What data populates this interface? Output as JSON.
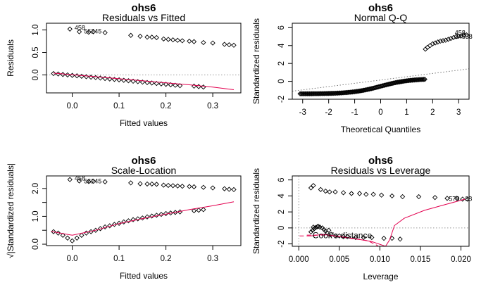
{
  "chart_data": [
    {
      "id": "p1",
      "type": "scatter",
      "title": "ohs6",
      "subtitle": "Residuals vs Fitted",
      "xlabel": "Fitted values",
      "ylabel": "Residuals",
      "xlim": [
        -0.055,
        0.36
      ],
      "ylim": [
        -0.4,
        1.15
      ],
      "xticks": [
        0.0,
        0.1,
        0.2,
        0.3
      ],
      "xtick_labels": [
        "0.0",
        "0.1",
        "0.2",
        "0.3"
      ],
      "yticks": [
        0.0,
        0.5,
        1.0
      ],
      "ytick_labels": [
        "0.0",
        "0.5",
        "1.0"
      ],
      "hline": 0,
      "points": [
        [
          -0.04,
          0.03
        ],
        [
          -0.03,
          0.02
        ],
        [
          -0.02,
          0.01
        ],
        [
          -0.01,
          0.0
        ],
        [
          0.0,
          -0.01
        ],
        [
          0.01,
          -0.02
        ],
        [
          0.02,
          -0.03
        ],
        [
          0.03,
          -0.04
        ],
        [
          0.04,
          -0.05
        ],
        [
          0.05,
          -0.06
        ],
        [
          0.06,
          -0.07
        ],
        [
          0.07,
          -0.08
        ],
        [
          0.08,
          -0.09
        ],
        [
          0.09,
          -0.1
        ],
        [
          0.1,
          -0.11
        ],
        [
          0.11,
          -0.12
        ],
        [
          0.12,
          -0.13
        ],
        [
          0.13,
          -0.14
        ],
        [
          0.14,
          -0.15
        ],
        [
          0.15,
          -0.16
        ],
        [
          0.16,
          -0.17
        ],
        [
          0.17,
          -0.18
        ],
        [
          0.18,
          -0.19
        ],
        [
          0.19,
          -0.2
        ],
        [
          0.2,
          -0.21
        ],
        [
          0.21,
          -0.22
        ],
        [
          0.22,
          -0.23
        ],
        [
          0.23,
          -0.24
        ],
        [
          0.26,
          -0.25
        ],
        [
          0.27,
          -0.26
        ],
        [
          0.28,
          -0.27
        ],
        [
          -0.005,
          1.02
        ],
        [
          0.015,
          0.96
        ],
        [
          0.035,
          0.95
        ],
        [
          0.045,
          0.96
        ],
        [
          0.07,
          0.94
        ],
        [
          0.125,
          0.88
        ],
        [
          0.145,
          0.86
        ],
        [
          0.16,
          0.84
        ],
        [
          0.17,
          0.84
        ],
        [
          0.18,
          0.83
        ],
        [
          0.195,
          0.8
        ],
        [
          0.205,
          0.79
        ],
        [
          0.215,
          0.78
        ],
        [
          0.225,
          0.77
        ],
        [
          0.235,
          0.76
        ],
        [
          0.25,
          0.75
        ],
        [
          0.26,
          0.74
        ],
        [
          0.28,
          0.72
        ],
        [
          0.3,
          0.71
        ],
        [
          0.325,
          0.68
        ],
        [
          0.335,
          0.67
        ],
        [
          0.345,
          0.66
        ]
      ],
      "smooth": [
        [
          -0.04,
          0.04
        ],
        [
          0.05,
          -0.04
        ],
        [
          0.15,
          -0.13
        ],
        [
          0.25,
          -0.22
        ],
        [
          0.3,
          -0.27
        ],
        [
          0.345,
          -0.33
        ]
      ],
      "point_labels": [
        {
          "text": "458",
          "x": 0.005,
          "y": 1.04
        },
        {
          "text": "56245",
          "x": 0.025,
          "y": 0.96
        }
      ]
    },
    {
      "id": "p2",
      "type": "scatter",
      "title": "ohs6",
      "subtitle": "Normal Q-Q",
      "xlabel": "Theoretical Quantiles",
      "ylabel": "Standardized residuals",
      "xlim": [
        -3.4,
        3.4
      ],
      "ylim": [
        -2.0,
        6.5
      ],
      "xticks": [
        -3,
        -2,
        -1,
        0,
        1,
        2,
        3
      ],
      "xtick_labels": [
        "-3",
        "-2",
        "-1",
        "0",
        "1",
        "2",
        "3"
      ],
      "yticks": [
        -2,
        0,
        2,
        4,
        6
      ],
      "ytick_labels": [
        "-2",
        "0",
        "2",
        "4",
        "6"
      ],
      "refline": [
        [
          -3.4,
          -1.1
        ],
        [
          3.4,
          1.4
        ]
      ],
      "qq_body": {
        "x_start": -3.1,
        "x_end": 1.7,
        "count": 120
      },
      "qq_upper": [
        [
          1.72,
          3.6
        ],
        [
          1.8,
          3.8
        ],
        [
          1.9,
          4.0
        ],
        [
          2.0,
          4.2
        ],
        [
          2.1,
          4.3
        ],
        [
          2.2,
          4.4
        ],
        [
          2.3,
          4.5
        ],
        [
          2.4,
          4.55
        ],
        [
          2.5,
          4.6
        ],
        [
          2.6,
          4.7
        ],
        [
          2.7,
          4.8
        ],
        [
          2.8,
          4.9
        ],
        [
          2.9,
          5.0
        ],
        [
          3.0,
          5.05
        ],
        [
          3.1,
          5.1
        ],
        [
          3.2,
          5.15
        ],
        [
          3.3,
          5.2
        ]
      ],
      "point_labels": [
        {
          "text": "458",
          "x": 2.85,
          "y": 5.4
        },
        {
          "text": "24538",
          "x": 2.85,
          "y": 4.95
        }
      ]
    },
    {
      "id": "p3",
      "type": "scatter",
      "title": "ohs6",
      "subtitle": "Scale-Location",
      "xlabel": "Fitted values",
      "ylabel": "√|Standardized residuals|",
      "xlim": [
        -0.055,
        0.36
      ],
      "ylim": [
        -0.05,
        2.45
      ],
      "xticks": [
        0.0,
        0.1,
        0.2,
        0.3
      ],
      "xtick_labels": [
        "0.0",
        "0.1",
        "0.2",
        "0.3"
      ],
      "yticks": [
        0.0,
        1.0,
        2.0
      ],
      "ytick_labels": [
        "0.0",
        "1.0",
        "2.0"
      ],
      "yticks_minor": [
        0.5,
        1.5
      ],
      "points": [
        [
          -0.04,
          0.45
        ],
        [
          -0.03,
          0.4
        ],
        [
          -0.02,
          0.32
        ],
        [
          -0.01,
          0.22
        ],
        [
          0.0,
          0.12
        ],
        [
          0.01,
          0.22
        ],
        [
          0.02,
          0.32
        ],
        [
          0.03,
          0.4
        ],
        [
          0.04,
          0.45
        ],
        [
          0.05,
          0.5
        ],
        [
          0.06,
          0.56
        ],
        [
          0.07,
          0.62
        ],
        [
          0.08,
          0.66
        ],
        [
          0.09,
          0.71
        ],
        [
          0.1,
          0.75
        ],
        [
          0.11,
          0.8
        ],
        [
          0.12,
          0.84
        ],
        [
          0.13,
          0.88
        ],
        [
          0.14,
          0.91
        ],
        [
          0.15,
          0.94
        ],
        [
          0.16,
          0.98
        ],
        [
          0.17,
          1.01
        ],
        [
          0.18,
          1.04
        ],
        [
          0.19,
          1.07
        ],
        [
          0.2,
          1.1
        ],
        [
          0.21,
          1.12
        ],
        [
          0.22,
          1.14
        ],
        [
          0.23,
          1.16
        ],
        [
          0.26,
          1.2
        ],
        [
          0.27,
          1.22
        ],
        [
          0.28,
          1.24
        ],
        [
          -0.005,
          2.32
        ],
        [
          0.015,
          2.27
        ],
        [
          0.035,
          2.25
        ],
        [
          0.045,
          2.26
        ],
        [
          0.07,
          2.24
        ],
        [
          0.125,
          2.2
        ],
        [
          0.145,
          2.17
        ],
        [
          0.16,
          2.16
        ],
        [
          0.17,
          2.16
        ],
        [
          0.18,
          2.15
        ],
        [
          0.195,
          2.12
        ],
        [
          0.205,
          2.11
        ],
        [
          0.215,
          2.1
        ],
        [
          0.225,
          2.09
        ],
        [
          0.235,
          2.08
        ],
        [
          0.25,
          2.07
        ],
        [
          0.26,
          2.06
        ],
        [
          0.28,
          2.04
        ],
        [
          0.3,
          2.02
        ],
        [
          0.325,
          1.99
        ],
        [
          0.335,
          1.97
        ],
        [
          0.345,
          1.96
        ]
      ],
      "smooth": [
        [
          -0.045,
          0.46
        ],
        [
          -0.02,
          0.38
        ],
        [
          0.0,
          0.32
        ],
        [
          0.05,
          0.5
        ],
        [
          0.1,
          0.74
        ],
        [
          0.15,
          0.92
        ],
        [
          0.2,
          1.08
        ],
        [
          0.25,
          1.24
        ],
        [
          0.3,
          1.38
        ],
        [
          0.345,
          1.52
        ]
      ],
      "point_labels": [
        {
          "text": "458",
          "x": 0.005,
          "y": 2.35
        },
        {
          "text": "56245",
          "x": 0.025,
          "y": 2.25
        }
      ]
    },
    {
      "id": "p4",
      "type": "scatter",
      "title": "ohs6",
      "subtitle": "Residuals vs Leverage",
      "xlabel": "Leverage",
      "ylabel": "Standardized residuals",
      "xlim": [
        -0.0008,
        0.021
      ],
      "ylim": [
        -2.3,
        6.5
      ],
      "xticks": [
        0.0,
        0.005,
        0.01,
        0.015,
        0.02
      ],
      "xtick_labels": [
        "0.000",
        "0.005",
        "0.010",
        "0.015",
        "0.020"
      ],
      "yticks": [
        -2,
        0,
        2,
        4,
        6
      ],
      "ytick_labels": [
        "-2",
        "0",
        "2",
        "4",
        "6"
      ],
      "hline": 0,
      "vline": 0,
      "points": [
        [
          0.0015,
          5.0
        ],
        [
          0.0018,
          5.3
        ],
        [
          0.0027,
          4.8
        ],
        [
          0.0033,
          4.6
        ],
        [
          0.0038,
          4.5
        ],
        [
          0.0045,
          4.5
        ],
        [
          0.0055,
          4.4
        ],
        [
          0.0065,
          4.3
        ],
        [
          0.0075,
          4.3
        ],
        [
          0.0083,
          4.2
        ],
        [
          0.0092,
          4.2
        ],
        [
          0.0102,
          4.1
        ],
        [
          0.0115,
          4.0
        ],
        [
          0.0128,
          3.9
        ],
        [
          0.0148,
          3.9
        ],
        [
          0.0168,
          3.8
        ],
        [
          0.0183,
          3.7
        ],
        [
          0.0195,
          3.7
        ],
        [
          0.0202,
          3.6
        ],
        [
          0.0208,
          3.6
        ],
        [
          0.0015,
          -0.5
        ],
        [
          0.0017,
          -0.3
        ],
        [
          0.0019,
          -0.1
        ],
        [
          0.0021,
          0.05
        ],
        [
          0.0023,
          0.15
        ],
        [
          0.0026,
          0.1
        ],
        [
          0.0029,
          0.0
        ],
        [
          0.0031,
          -0.2
        ],
        [
          0.0033,
          -0.4
        ],
        [
          0.0035,
          -0.6
        ],
        [
          0.0037,
          -0.3
        ],
        [
          0.004,
          -0.8
        ],
        [
          0.0045,
          -1.0
        ],
        [
          0.005,
          -1.0
        ],
        [
          0.0055,
          -1.1
        ],
        [
          0.006,
          -1.1
        ],
        [
          0.007,
          -1.2
        ],
        [
          0.008,
          -1.2
        ],
        [
          0.009,
          -1.2
        ],
        [
          0.0105,
          -1.3
        ],
        [
          0.0115,
          -1.3
        ],
        [
          0.0125,
          -1.4
        ],
        [
          0.0018,
          0.1
        ],
        [
          0.0024,
          0.2
        ]
      ],
      "smooth": [
        [
          0.0015,
          -1.0
        ],
        [
          0.003,
          -0.8
        ],
        [
          0.006,
          -1.2
        ],
        [
          0.009,
          -1.7
        ],
        [
          0.0107,
          -2.3
        ],
        [
          0.0112,
          -1.5
        ],
        [
          0.0118,
          0.3
        ],
        [
          0.013,
          1.2
        ],
        [
          0.0155,
          2.2
        ],
        [
          0.018,
          2.9
        ],
        [
          0.0205,
          3.6
        ]
      ],
      "cooks_curve": [
        [
          0.001,
          -0.9
        ],
        [
          0.003,
          -0.9
        ],
        [
          0.006,
          -1.25
        ],
        [
          0.0085,
          -1.6
        ],
        [
          0.0095,
          -2.1
        ],
        [
          0.01,
          -2.4
        ]
      ],
      "cooks_label": "Cook's distance",
      "point_labels": [
        {
          "text": "578",
          "x": 0.0185,
          "y": 3.6
        },
        {
          "text": "38",
          "x": 0.0205,
          "y": 3.6
        }
      ]
    }
  ]
}
